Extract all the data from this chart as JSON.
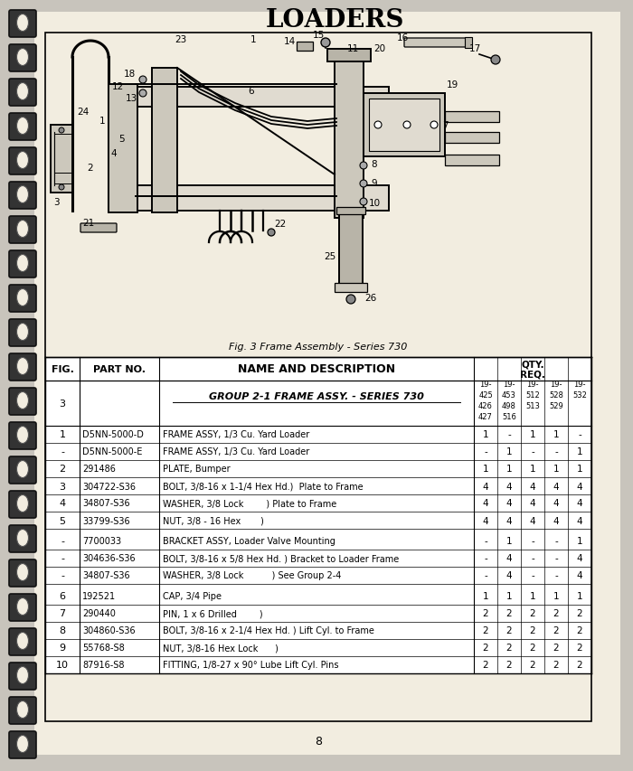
{
  "title": "LOADERS",
  "page_number": "8",
  "fig_caption": "Fig. 3 Frame Assembly - Series 730",
  "bg_color": "#c8c4bc",
  "page_bg": "#f2ede0",
  "border_color": "#000000",
  "group_header": "GROUP 2-1 FRAME ASSY. - SERIES 730",
  "qty_labels_line1": [
    "19-",
    "19-",
    "19-",
    "19-",
    "19-"
  ],
  "qty_labels_line2": [
    "425",
    "453",
    "512",
    "528",
    "532"
  ],
  "qty_labels_line3": [
    "426",
    "498",
    "513",
    "529",
    ""
  ],
  "qty_labels_line4": [
    "427",
    "516",
    "",
    "",
    ""
  ],
  "rows": [
    {
      "fig": "1",
      "part": "D5NN-5000-D",
      "name": "FRAME ASSY, 1/3 Cu. Yard Loader",
      "qty": [
        "1",
        "-",
        "1",
        "1",
        "-"
      ]
    },
    {
      "fig": "-",
      "part": "D5NN-5000-E",
      "name": "FRAME ASSY, 1/3 Cu. Yard Loader",
      "qty": [
        "-",
        "1",
        "-",
        "-",
        "1"
      ]
    },
    {
      "fig": "2",
      "part": "291486",
      "name": "PLATE, Bumper",
      "qty": [
        "1",
        "1",
        "1",
        "1",
        "1"
      ]
    },
    {
      "fig": "3",
      "part": "304722-S36",
      "name": "BOLT, 3/8-16 x 1-1/4 Hex Hd.)  Plate to Frame",
      "qty": [
        "4",
        "4",
        "4",
        "4",
        "4"
      ]
    },
    {
      "fig": "4",
      "part": "34807-S36",
      "name": "WASHER, 3/8 Lock        ) Plate to Frame",
      "qty": [
        "4",
        "4",
        "4",
        "4",
        "4"
      ]
    },
    {
      "fig": "5",
      "part": "33799-S36",
      "name": "NUT, 3/8 - 16 Hex       )",
      "qty": [
        "4",
        "4",
        "4",
        "4",
        "4"
      ]
    },
    {
      "fig": "-",
      "part": "7700033",
      "name": "BRACKET ASSY, Loader Valve Mounting",
      "qty": [
        "-",
        "1",
        "-",
        "-",
        "1"
      ]
    },
    {
      "fig": "-",
      "part": "304636-S36",
      "name": "BOLT, 3/8-16 x 5/8 Hex Hd. ) Bracket to Loader Frame",
      "qty": [
        "-",
        "4",
        "-",
        "-",
        "4"
      ]
    },
    {
      "fig": "-",
      "part": "34807-S36",
      "name": "WASHER, 3/8 Lock          ) See Group 2-4",
      "qty": [
        "-",
        "4",
        "-",
        "-",
        "4"
      ]
    },
    {
      "fig": "6",
      "part": "192521",
      "name": "CAP, 3/4 Pipe",
      "qty": [
        "1",
        "1",
        "1",
        "1",
        "1"
      ]
    },
    {
      "fig": "7",
      "part": "290440",
      "name": "PIN, 1 x 6 Drilled        )",
      "qty": [
        "2",
        "2",
        "2",
        "2",
        "2"
      ]
    },
    {
      "fig": "8",
      "part": "304860-S36",
      "name": "BOLT, 3/8-16 x 2-1/4 Hex Hd. ) Lift Cyl. to Frame",
      "qty": [
        "2",
        "2",
        "2",
        "2",
        "2"
      ]
    },
    {
      "fig": "9",
      "part": "55768-S8",
      "name": "NUT, 3/8-16 Hex Lock      )",
      "qty": [
        "2",
        "2",
        "2",
        "2",
        "2"
      ]
    },
    {
      "fig": "10",
      "part": "87916-S8",
      "name": "FITTING, 1/8-27 x 90° Lube Lift Cyl. Pins",
      "qty": [
        "2",
        "2",
        "2",
        "2",
        "2"
      ]
    }
  ],
  "row_groups": [
    [
      0,
      1,
      2,
      3,
      4,
      5
    ],
    [
      6,
      7,
      8
    ],
    [
      9,
      10,
      11,
      12,
      13
    ]
  ]
}
